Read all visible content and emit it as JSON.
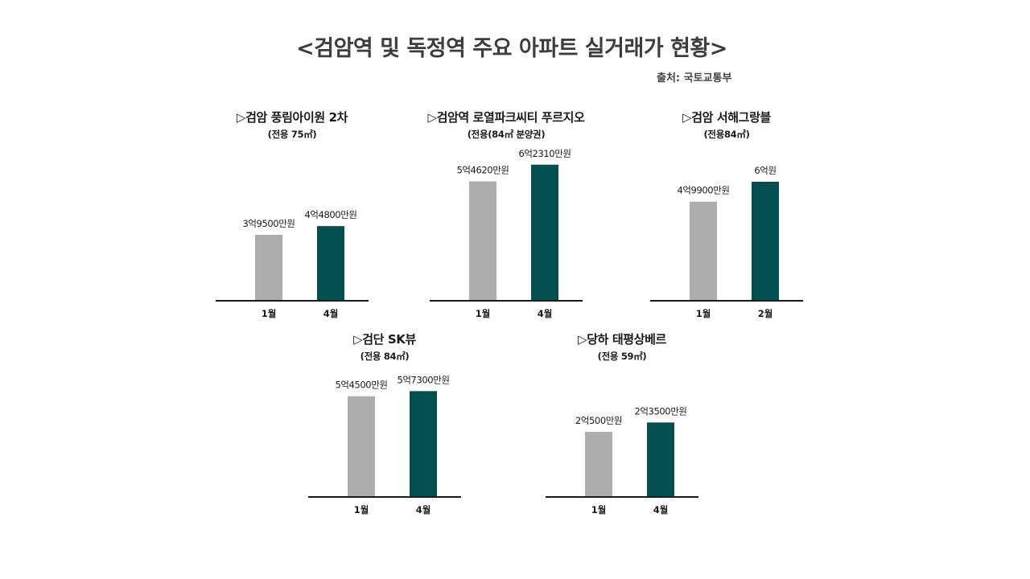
{
  "title": "<검암역 및 독정역 주요 아파트 실거래가 현황>",
  "source": "출처: 국토교통부",
  "colors": {
    "earlier": "#adadad",
    "later": "#034f4f",
    "axis": "#1a1a1a"
  },
  "chart_data": [
    {
      "type": "bar",
      "title": "▷검암 풍림아이원 2차",
      "subtitle": "(전용 75㎡)",
      "categories": [
        "1월",
        "4월"
      ],
      "values": [
        39500,
        44800
      ],
      "value_labels": [
        "3억9500만원",
        "4억4800만원"
      ]
    },
    {
      "type": "bar",
      "title": "▷검암역  로열파크씨티 푸르지오",
      "subtitle": "(전용(84㎡ 분양권)",
      "categories": [
        "1월",
        "4월"
      ],
      "values": [
        54620,
        62310
      ],
      "value_labels": [
        "5억4620만원",
        "6억2310만원"
      ]
    },
    {
      "type": "bar",
      "title": "▷검암 서해그랑블",
      "subtitle": "(전용84㎡)",
      "categories": [
        "1월",
        "2월"
      ],
      "values": [
        49900,
        60000
      ],
      "value_labels": [
        "4억9900만원",
        "6억원"
      ]
    },
    {
      "type": "bar",
      "title": "▷검단 SK뷰",
      "subtitle": "(전용 84㎡)",
      "categories": [
        "1월",
        "4월"
      ],
      "values": [
        54500,
        57300
      ],
      "value_labels": [
        "5억4500만원",
        "5억7300만원"
      ]
    },
    {
      "type": "bar",
      "title": "▷당하 태평상베르",
      "subtitle": "(전용 59㎡)",
      "categories": [
        "1월",
        "4월"
      ],
      "values": [
        20500,
        23500
      ],
      "value_labels": [
        "2억500만원",
        "2억3500만원"
      ]
    }
  ]
}
